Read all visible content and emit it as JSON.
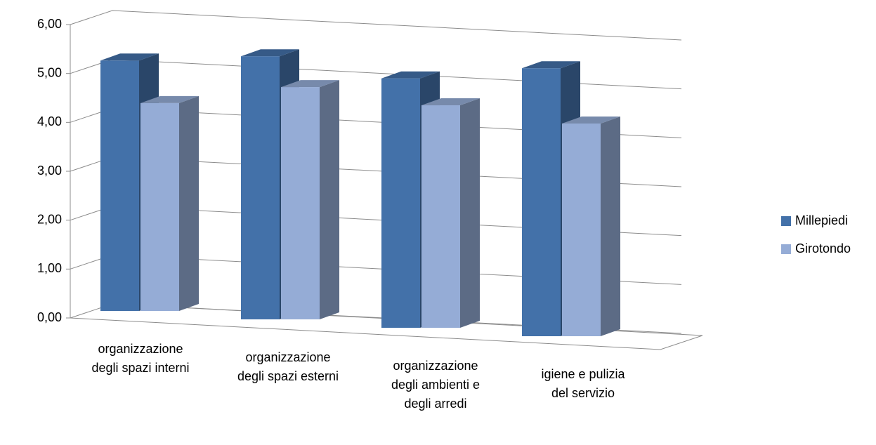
{
  "chart_data": {
    "type": "bar3d",
    "categories": [
      "organizzazione\ndegli spazi interni",
      "organizzazione\ndegli spazi esterni",
      "organizzazione\ndegli ambienti e\ndegli arredi",
      "igiene e pulizia\ndel servizio"
    ],
    "series": [
      {
        "name": "Millepiedi",
        "color": "#4371a9",
        "values": [
          5.12,
          5.38,
          5.1,
          5.48
        ]
      },
      {
        "name": "Girotondo",
        "color": "#95acd6",
        "values": [
          4.25,
          4.75,
          4.55,
          4.35
        ]
      }
    ],
    "ylim": [
      0,
      6
    ],
    "yticks": [
      {
        "value": 0,
        "label": "0,00"
      },
      {
        "value": 1,
        "label": "1,00"
      },
      {
        "value": 2,
        "label": "2,00"
      },
      {
        "value": 3,
        "label": "3,00"
      },
      {
        "value": 4,
        "label": "4,00"
      },
      {
        "value": 5,
        "label": "5,00"
      },
      {
        "value": 6,
        "label": "6,00"
      }
    ],
    "grid": true,
    "legend": "right"
  }
}
